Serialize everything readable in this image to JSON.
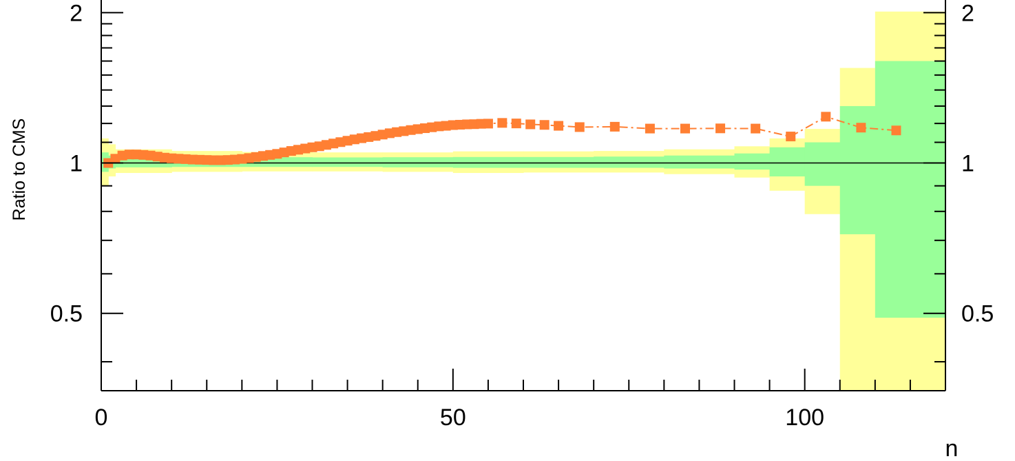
{
  "chart_data": {
    "type": "scatter",
    "title": "",
    "xlabel": "n",
    "ylabel": "Ratio to CMS",
    "xlim": [
      0,
      120
    ],
    "ylim": [
      0.35,
      2.12
    ],
    "yscale": "log",
    "grid": false,
    "legend": "none",
    "reference_line": 1,
    "x_tick_labels": [
      "0",
      "50",
      "100"
    ],
    "y_tick_labels": [
      "0.5",
      "1",
      "2"
    ],
    "x_ticks": [
      0,
      50,
      100
    ],
    "y_ticks": [
      0.5,
      1,
      2
    ],
    "colors": {
      "marker": "#ff7f33",
      "line": "#ff7f33",
      "band_outer": "#ffff99",
      "band_inner": "#99ff99",
      "axes": "#000000"
    },
    "bands": {
      "edges": [
        0,
        1,
        2,
        10,
        20,
        30,
        40,
        50,
        60,
        70,
        80,
        90,
        95,
        100,
        105,
        110,
        115,
        120
      ],
      "outer_lo": [
        0.9,
        0.94,
        0.955,
        0.96,
        0.962,
        0.962,
        0.96,
        0.955,
        0.957,
        0.957,
        0.95,
        0.935,
        0.88,
        0.79,
        0.33,
        0.33,
        0.33
      ],
      "outer_hi": [
        1.12,
        1.09,
        1.065,
        1.057,
        1.052,
        1.05,
        1.05,
        1.055,
        1.055,
        1.057,
        1.065,
        1.08,
        1.12,
        1.17,
        1.55,
        2.01,
        2.01
      ],
      "inner_lo": [
        0.96,
        0.975,
        0.98,
        0.982,
        0.982,
        0.982,
        0.98,
        0.978,
        0.978,
        0.978,
        0.975,
        0.97,
        0.94,
        0.9,
        0.72,
        0.49,
        0.49
      ],
      "inner_hi": [
        1.05,
        1.035,
        1.028,
        1.027,
        1.027,
        1.026,
        1.027,
        1.028,
        1.028,
        1.03,
        1.035,
        1.045,
        1.075,
        1.1,
        1.3,
        1.6,
        1.6
      ]
    },
    "series": [
      {
        "x": [
          1,
          2,
          3,
          4,
          5,
          6,
          7,
          8,
          9,
          10,
          11,
          12,
          13,
          14,
          15,
          16,
          17,
          18,
          19,
          20,
          21,
          22,
          23,
          24,
          25,
          26,
          27,
          28,
          29,
          30,
          31,
          32,
          33,
          34,
          35,
          36,
          37,
          38,
          39,
          40,
          41,
          42,
          43,
          44,
          45,
          46,
          47,
          48,
          49,
          50,
          51,
          52,
          53,
          54,
          55,
          57,
          59,
          61,
          63,
          65,
          68,
          73,
          78,
          83,
          88,
          93,
          98,
          103,
          108,
          113
        ],
        "y": [
          1.0,
          1.02,
          1.035,
          1.04,
          1.04,
          1.038,
          1.035,
          1.03,
          1.025,
          1.022,
          1.02,
          1.018,
          1.016,
          1.015,
          1.014,
          1.013,
          1.013,
          1.014,
          1.016,
          1.019,
          1.023,
          1.028,
          1.033,
          1.038,
          1.043,
          1.05,
          1.057,
          1.063,
          1.069,
          1.075,
          1.08,
          1.087,
          1.094,
          1.101,
          1.108,
          1.115,
          1.121,
          1.127,
          1.133,
          1.14,
          1.147,
          1.153,
          1.158,
          1.164,
          1.169,
          1.174,
          1.179,
          1.184,
          1.187,
          1.191,
          1.193,
          1.195,
          1.196,
          1.198,
          1.199,
          1.203,
          1.2,
          1.195,
          1.192,
          1.187,
          1.18,
          1.182,
          1.172,
          1.172,
          1.173,
          1.172,
          1.13,
          1.238,
          1.177,
          1.162
        ],
        "yerr": [
          0,
          0,
          0,
          0,
          0,
          0,
          0,
          0,
          0,
          0,
          0,
          0,
          0,
          0,
          0,
          0,
          0,
          0,
          0,
          0,
          0,
          0,
          0,
          0,
          0,
          0,
          0,
          0,
          0,
          0,
          0,
          0,
          0,
          0,
          0,
          0,
          0,
          0,
          0,
          0,
          0,
          0,
          0,
          0,
          0,
          0,
          0,
          0,
          0,
          0,
          0,
          0,
          0,
          0,
          0,
          0,
          0,
          0,
          0,
          0,
          0,
          0,
          0,
          0,
          0,
          0,
          0.012,
          0.015,
          0.015,
          0.025
        ]
      }
    ]
  }
}
